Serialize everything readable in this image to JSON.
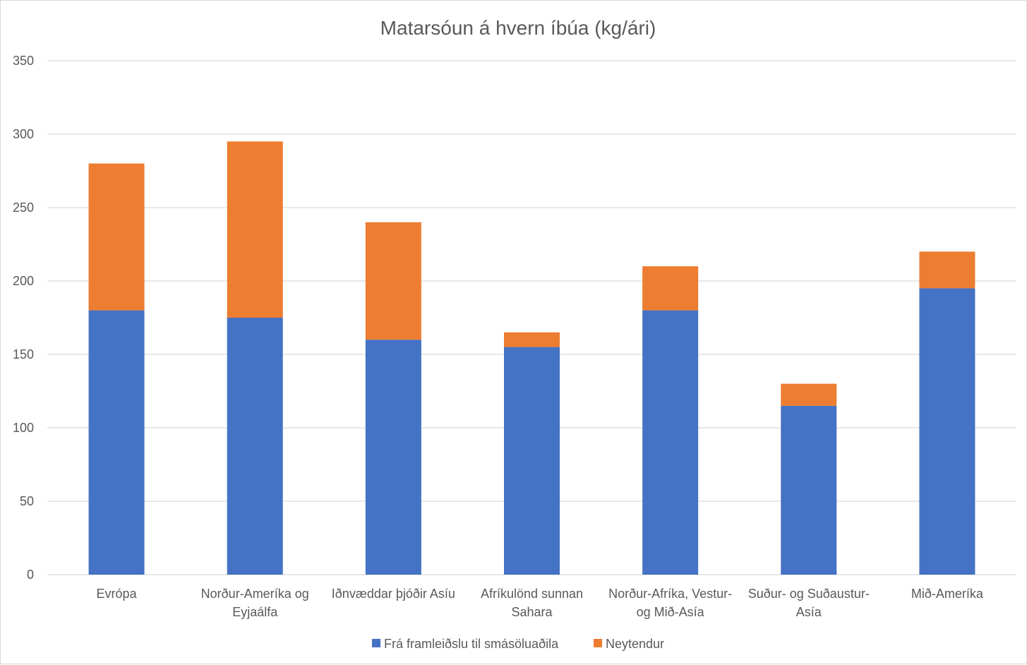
{
  "chart_data": {
    "type": "bar",
    "stacked": true,
    "title": "Matarsóun á hvern íbúa (kg/ári)",
    "xlabel": "",
    "ylabel": "",
    "ylim": [
      0,
      350
    ],
    "yticks": [
      0,
      50,
      100,
      150,
      200,
      250,
      300,
      350
    ],
    "grid": true,
    "legend_position": "bottom",
    "categories": [
      [
        "Evrópa"
      ],
      [
        "Norður-Ameríka og",
        "Eyjaálfa"
      ],
      [
        "Iðnvæddar þjóðir Asíu"
      ],
      [
        "Afríkulönd sunnan",
        "Sahara"
      ],
      [
        "Norður-Afríka, Vestur-",
        "og Mið-Asía"
      ],
      [
        "Suður- og Suðaustur-",
        "Asía"
      ],
      [
        "Mið-Ameríka"
      ]
    ],
    "series": [
      {
        "name": "Frá framleiðslu til smásöluaðila",
        "color": "#4472C4",
        "values": [
          180,
          175,
          160,
          155,
          180,
          115,
          195
        ]
      },
      {
        "name": "Neytendur",
        "color": "#ED7D31",
        "values": [
          100,
          120,
          80,
          10,
          30,
          15,
          25
        ]
      }
    ]
  }
}
